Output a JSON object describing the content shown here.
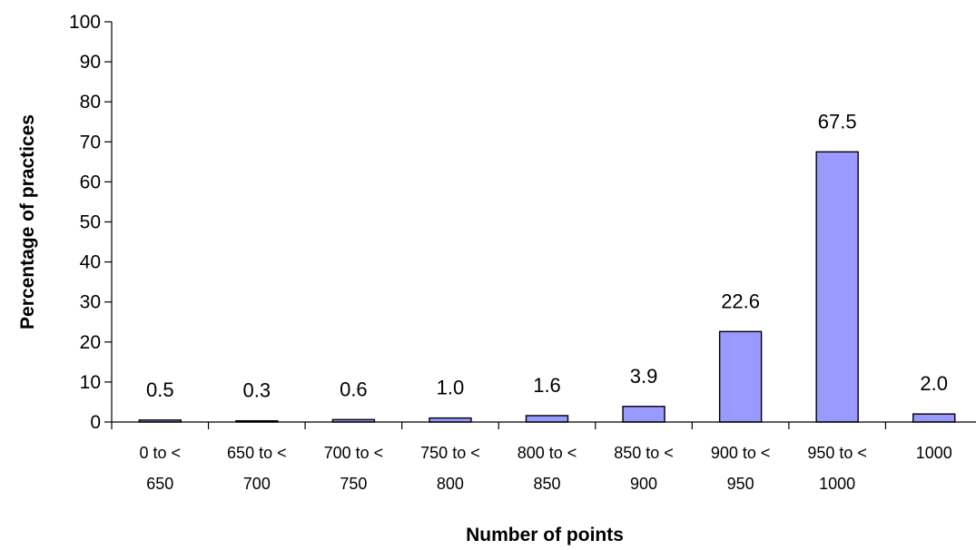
{
  "chart_data": {
    "type": "bar",
    "title": "",
    "xlabel": "Number of points",
    "ylabel": "Percentage of practices",
    "ylim": [
      0,
      100
    ],
    "yticks": [
      0,
      10,
      20,
      30,
      40,
      50,
      60,
      70,
      80,
      90,
      100
    ],
    "grid": false,
    "legend": "none",
    "bar_color": "#9999FF",
    "categories": [
      [
        "0 to <",
        "650"
      ],
      [
        "650 to <",
        "700"
      ],
      [
        "700 to <",
        "750"
      ],
      [
        "750 to <",
        "800"
      ],
      [
        "800 to <",
        "850"
      ],
      [
        "850 to <",
        "900"
      ],
      [
        "900 to <",
        "950"
      ],
      [
        "950 to <",
        "1000"
      ],
      [
        "1000"
      ]
    ],
    "values": [
      0.5,
      0.3,
      0.6,
      1.0,
      1.6,
      3.9,
      22.6,
      67.5,
      2.0
    ],
    "data_labels": [
      "0.5",
      "0.3",
      "0.6",
      "1.0",
      "1.6",
      "3.9",
      "22.6",
      "67.5",
      "2.0"
    ]
  }
}
